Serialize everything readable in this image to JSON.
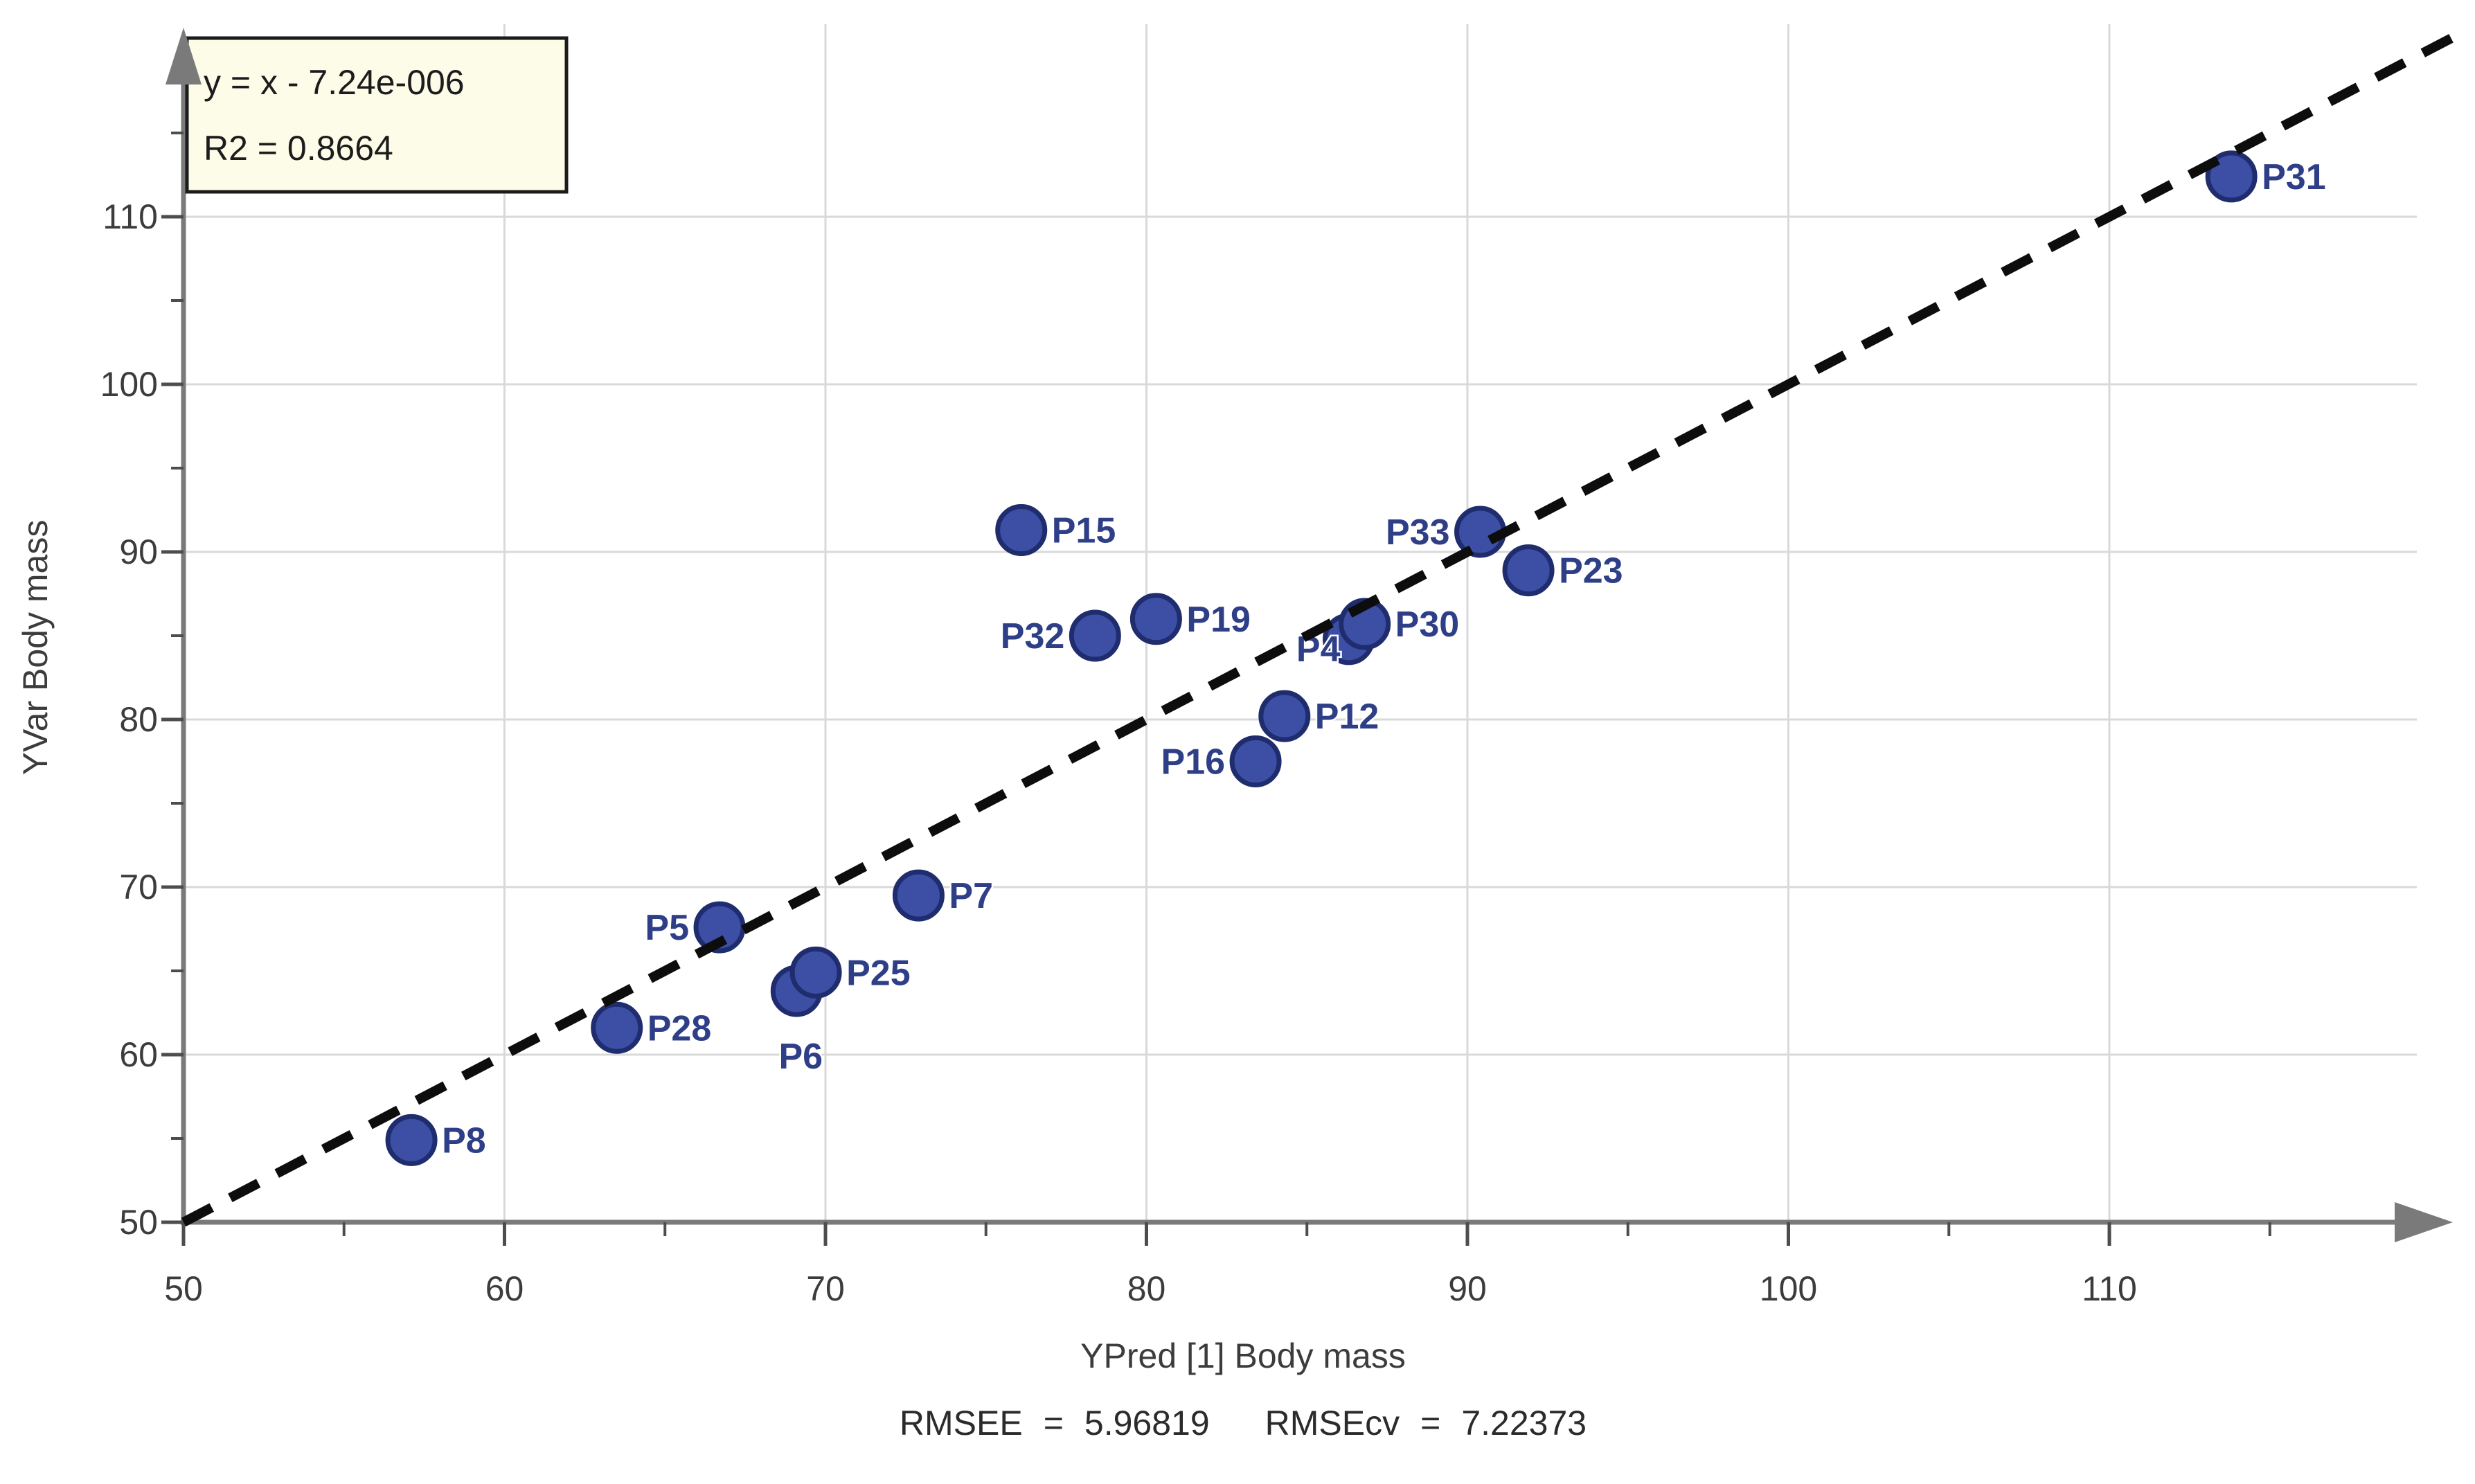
{
  "annotation": {
    "line1": "y = x - 7.24e-006",
    "line2": "R2 = 0.8664"
  },
  "footer": {
    "rmsee_label": "RMSEE",
    "equals": "=",
    "rmsee_value": "5.96819",
    "rmsecv_label": "RMSEcv",
    "rmsecv_value": "7.22373"
  },
  "chart_data": {
    "type": "scatter",
    "title": "",
    "xlabel": "YPred [1] Body mass",
    "ylabel": "YVar Body mass",
    "xlim": [
      50,
      119.5
    ],
    "ylim": [
      50,
      121.3
    ],
    "x_major_ticks": [
      50,
      60,
      70,
      80,
      90,
      100,
      110
    ],
    "x_minor_ticks": [
      55,
      65,
      75,
      85,
      95,
      105,
      115
    ],
    "y_major_ticks": [
      50,
      60,
      70,
      80,
      90,
      100,
      110
    ],
    "y_minor_ticks": [
      55,
      65,
      75,
      85,
      95,
      105,
      115
    ],
    "grid": true,
    "legend_position": "none",
    "fit_line": {
      "equation": "y = x - 7.24e-006",
      "r2": 0.8664,
      "style": "dashed",
      "x_start": 50,
      "x_end": 121.2
    },
    "rmsee": 5.96819,
    "rmsecv": 7.22373,
    "points": [
      {
        "label": "P8",
        "x": 57.1,
        "y": 54.9,
        "label_pos": "right"
      },
      {
        "label": "P28",
        "x": 63.5,
        "y": 61.6,
        "label_pos": "right"
      },
      {
        "label": "P5",
        "x": 66.7,
        "y": 67.6,
        "label_pos": "left"
      },
      {
        "label": "P6",
        "x": 69.1,
        "y": 63.8,
        "label_pos": "below"
      },
      {
        "label": "P25",
        "x": 69.7,
        "y": 64.9,
        "label_pos": "right"
      },
      {
        "label": "P7",
        "x": 72.9,
        "y": 69.5,
        "label_pos": "right"
      },
      {
        "label": "P15",
        "x": 76.1,
        "y": 91.3,
        "label_pos": "right"
      },
      {
        "label": "P32",
        "x": 78.4,
        "y": 85.0,
        "label_pos": "left"
      },
      {
        "label": "P19",
        "x": 80.3,
        "y": 86.0,
        "label_pos": "right"
      },
      {
        "label": "P16",
        "x": 83.4,
        "y": 77.5,
        "label_pos": "left"
      },
      {
        "label": "P12",
        "x": 84.3,
        "y": 80.2,
        "label_pos": "right"
      },
      {
        "label": "P4",
        "x": 86.3,
        "y": 84.8,
        "label_pos": "left-low"
      },
      {
        "label": "P30",
        "x": 86.8,
        "y": 85.7,
        "label_pos": "right"
      },
      {
        "label": "P33",
        "x": 90.4,
        "y": 91.2,
        "label_pos": "left"
      },
      {
        "label": "P23",
        "x": 91.9,
        "y": 88.9,
        "label_pos": "right"
      },
      {
        "label": "P31",
        "x": 113.8,
        "y": 112.4,
        "label_pos": "right"
      }
    ],
    "colors": {
      "point_fill": "#3c4fa5",
      "point_stroke": "#1f2d6e",
      "point_label": "#2e3f87",
      "grid": "#d9d9d9",
      "axis": "#7a7a7a",
      "tick": "#4d4d4d",
      "fit_line": "#0d0d0d",
      "annotation_fill": "#fdfce9",
      "annotation_border": "#1b1b1b"
    }
  }
}
